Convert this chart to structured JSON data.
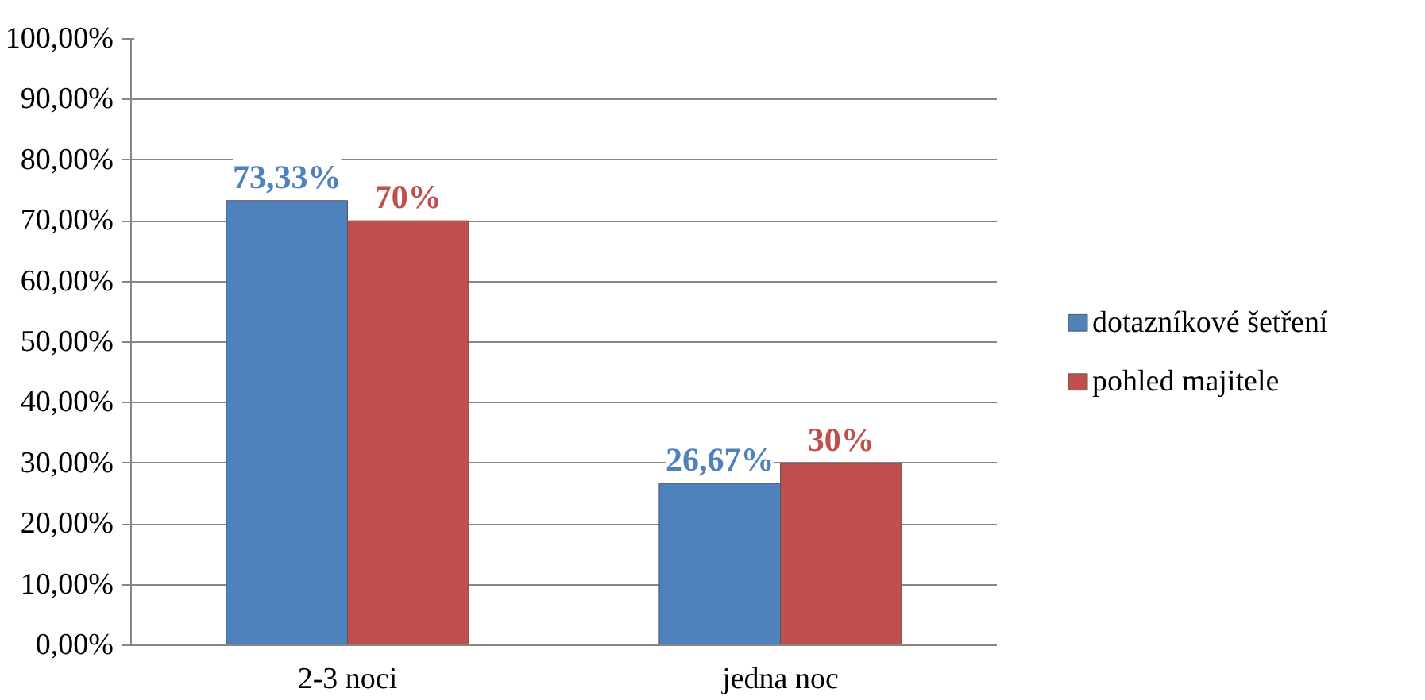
{
  "chart_data": {
    "type": "bar",
    "categories": [
      "2-3 noci",
      "jedna noc"
    ],
    "series": [
      {
        "name": "dotazníkové šetření",
        "color": "#4f81bd",
        "values": [
          73.33,
          26.67
        ],
        "value_labels": [
          "73,33%",
          "26,67%"
        ]
      },
      {
        "name": "pohled majitele",
        "color": "#c0504d",
        "values": [
          70,
          30
        ],
        "value_labels": [
          "70%",
          "30%"
        ]
      }
    ],
    "ylim": [
      0,
      100
    ],
    "yticks": [
      {
        "value": 0,
        "label": "0,00%"
      },
      {
        "value": 10,
        "label": "10,00%"
      },
      {
        "value": 20,
        "label": "20,00%"
      },
      {
        "value": 30,
        "label": "30,00%"
      },
      {
        "value": 40,
        "label": "40,00%"
      },
      {
        "value": 50,
        "label": "50,00%"
      },
      {
        "value": 60,
        "label": "60,00%"
      },
      {
        "value": 70,
        "label": "70,00%"
      },
      {
        "value": 80,
        "label": "80,00%"
      },
      {
        "value": 90,
        "label": "90,00%"
      },
      {
        "value": 100,
        "label": "100,00%"
      }
    ],
    "grid": "y",
    "legend": "right"
  }
}
